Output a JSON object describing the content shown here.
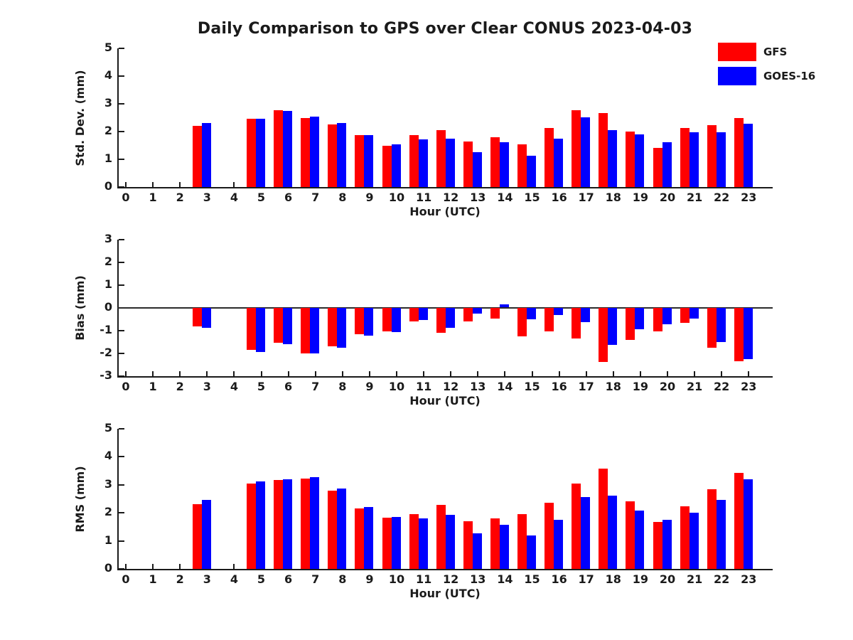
{
  "title": "Daily Comparison to GPS over Clear CONUS 2023-04-03",
  "legend": [
    {
      "label": "GFS",
      "color": "#ff0000"
    },
    {
      "label": "GOES-16",
      "color": "#0000ff"
    }
  ],
  "axis_color": "#1a1a1a",
  "chart_data": [
    {
      "type": "bar",
      "ylabel": "Std. Dev. (mm)",
      "xlabel": "Hour (UTC)",
      "ylim": [
        0,
        5
      ],
      "yticks": [
        5,
        4,
        3,
        2,
        1,
        0
      ],
      "grid": false,
      "legend_position": "top-right",
      "categories": [
        "0",
        "1",
        "2",
        "3",
        "4",
        "5",
        "6",
        "7",
        "8",
        "9",
        "10",
        "11",
        "12",
        "13",
        "14",
        "15",
        "16",
        "17",
        "18",
        "19",
        "20",
        "21",
        "22",
        "23"
      ],
      "series": [
        {
          "name": "GFS",
          "color": "#ff0000",
          "values": [
            null,
            null,
            null,
            2.2,
            null,
            2.45,
            2.77,
            2.5,
            2.25,
            1.88,
            1.5,
            1.88,
            2.05,
            1.65,
            1.8,
            1.53,
            2.12,
            2.77,
            2.67,
            2.0,
            1.42,
            2.13,
            2.23,
            2.5
          ]
        },
        {
          "name": "GOES-16",
          "color": "#0000ff",
          "values": [
            null,
            null,
            null,
            2.3,
            null,
            2.46,
            2.75,
            2.54,
            2.3,
            1.87,
            1.54,
            1.73,
            1.75,
            1.26,
            1.61,
            1.12,
            1.75,
            2.52,
            2.06,
            1.9,
            1.62,
            1.98,
            1.98,
            2.29
          ]
        }
      ]
    },
    {
      "type": "bar",
      "ylabel": "Bias (mm)",
      "xlabel": "Hour (UTC)",
      "ylim": [
        -3,
        3
      ],
      "yticks": [
        3,
        2,
        1,
        0,
        -1,
        -2,
        -3
      ],
      "grid": false,
      "zero_line": true,
      "categories": [
        "0",
        "1",
        "2",
        "3",
        "4",
        "5",
        "6",
        "7",
        "8",
        "9",
        "10",
        "11",
        "12",
        "13",
        "14",
        "15",
        "16",
        "17",
        "18",
        "19",
        "20",
        "21",
        "22",
        "23"
      ],
      "series": [
        {
          "name": "GFS",
          "color": "#ff0000",
          "values": [
            null,
            null,
            null,
            -0.83,
            null,
            -1.85,
            -1.55,
            -2.02,
            -1.7,
            -1.16,
            -1.05,
            -0.62,
            -1.1,
            -0.6,
            -0.47,
            -1.25,
            -1.05,
            -1.37,
            -2.4,
            -1.43,
            -1.04,
            -0.67,
            -1.78,
            -2.35
          ]
        },
        {
          "name": "GOES-16",
          "color": "#0000ff",
          "values": [
            null,
            null,
            null,
            -0.88,
            null,
            -1.95,
            -1.62,
            -2.03,
            -1.76,
            -1.22,
            -1.07,
            -0.55,
            -0.9,
            -0.28,
            0.13,
            -0.5,
            -0.34,
            -0.63,
            -1.65,
            -0.95,
            -0.73,
            -0.49,
            -1.52,
            -2.25
          ]
        }
      ]
    },
    {
      "type": "bar",
      "ylabel": "RMS (mm)",
      "xlabel": "Hour (UTC)",
      "ylim": [
        0,
        5
      ],
      "yticks": [
        5,
        4,
        3,
        2,
        1,
        0
      ],
      "grid": false,
      "categories": [
        "0",
        "1",
        "2",
        "3",
        "4",
        "5",
        "6",
        "7",
        "8",
        "9",
        "10",
        "11",
        "12",
        "13",
        "14",
        "15",
        "16",
        "17",
        "18",
        "19",
        "20",
        "21",
        "22",
        "23"
      ],
      "series": [
        {
          "name": "GFS",
          "color": "#ff0000",
          "values": [
            null,
            null,
            null,
            2.31,
            null,
            3.05,
            3.17,
            3.22,
            2.78,
            2.15,
            1.84,
            1.96,
            2.28,
            1.7,
            1.79,
            1.96,
            2.35,
            3.05,
            3.57,
            2.41,
            1.68,
            2.23,
            2.84,
            3.42
          ]
        },
        {
          "name": "GOES-16",
          "color": "#0000ff",
          "values": [
            null,
            null,
            null,
            2.46,
            null,
            3.12,
            3.19,
            3.27,
            2.87,
            2.22,
            1.86,
            1.8,
            1.92,
            1.27,
            1.58,
            1.2,
            1.75,
            2.56,
            2.62,
            2.09,
            1.75,
            2.01,
            2.47,
            3.19
          ]
        }
      ]
    }
  ]
}
